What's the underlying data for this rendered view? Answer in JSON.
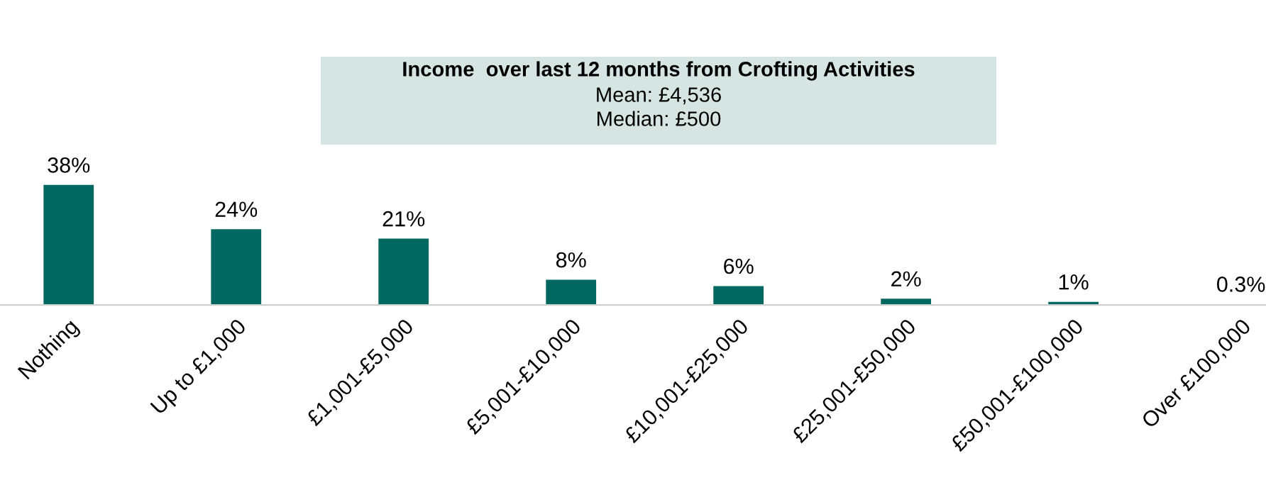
{
  "chart_data": {
    "type": "bar",
    "title": "Income  over last 12 months from Crofting Activities",
    "annotations": [
      "Mean: £4,536",
      "Median: £500"
    ],
    "categories": [
      "Nothing",
      "Up to £1,000",
      "£1,001-£5,000",
      "£5,001-£10,000",
      "£10,001-£25,000",
      "£25,001-£50,000",
      "£50,001-£100,000",
      "Over £100,000"
    ],
    "values": [
      38,
      24,
      21,
      8,
      6,
      2,
      1,
      0.3
    ],
    "value_labels": [
      "38%",
      "24%",
      "21%",
      "8%",
      "6%",
      "2%",
      "1%",
      "0.3%"
    ],
    "color": "#006860",
    "grid": false,
    "legend": false
  }
}
